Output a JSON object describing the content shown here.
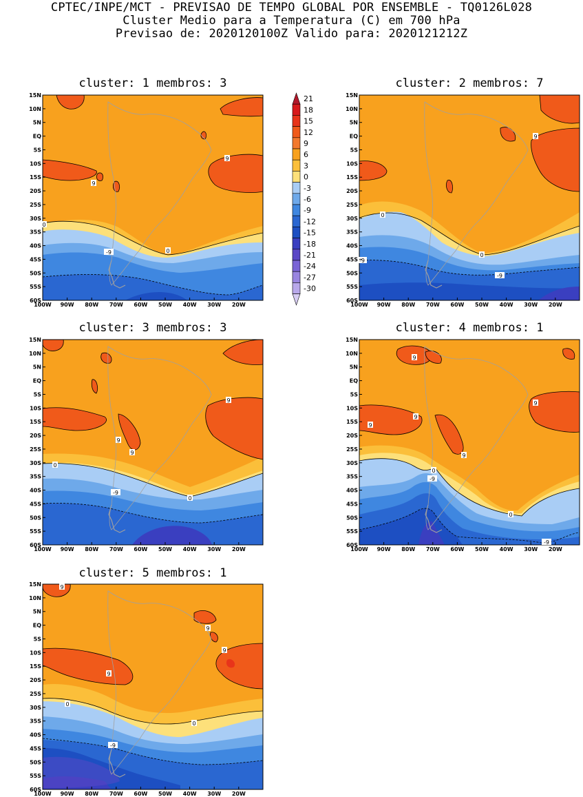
{
  "header": {
    "line1": "CPTEC/INPE/MCT - PREVISAO DE TEMPO GLOBAL POR ENSEMBLE - TQ0126L028",
    "line2": "Cluster Medio para a Temperatura (C) em 700 hPa",
    "line3": "Previsao de: 2020120100Z   Valido para: 2020121212Z"
  },
  "colorbar": {
    "levels": [
      "21",
      "18",
      "15",
      "12",
      "9",
      "6",
      "3",
      "0",
      "-3",
      "-6",
      "-9",
      "-12",
      "-15",
      "-18",
      "-21",
      "-24",
      "-27",
      "-30"
    ],
    "colors": [
      "#b2182b",
      "#d7191c",
      "#e8341a",
      "#f05a1a",
      "#f2792e",
      "#f8a11e",
      "#fbbf3a",
      "#fde07a",
      "#a9cdf5",
      "#6ea9ea",
      "#3f87e0",
      "#2a67d1",
      "#1d4fc2",
      "#3a3fc0",
      "#5b47c6",
      "#7a64d6",
      "#9985e0",
      "#b8a8ea",
      "#d6ccf2"
    ]
  },
  "axes": {
    "x_ticks": [
      "100W",
      "90W",
      "80W",
      "70W",
      "60W",
      "50W",
      "40W",
      "30W",
      "20W"
    ],
    "y_ticks": [
      "15N",
      "10N",
      "5N",
      "EQ",
      "5S",
      "10S",
      "15S",
      "20S",
      "25S",
      "30S",
      "35S",
      "40S",
      "45S",
      "50S",
      "55S",
      "60S"
    ]
  },
  "panels": [
    {
      "title": "cluster: 1   membros: 3",
      "labels": [
        "9",
        "9",
        "0",
        "0",
        "-9"
      ]
    },
    {
      "title": "cluster: 2   membros: 7",
      "labels": [
        "9",
        "0",
        "0",
        "-9",
        "-9"
      ]
    },
    {
      "title": "cluster: 3   membros: 3",
      "labels": [
        "9",
        "9",
        "9",
        "0",
        "0",
        "-9"
      ]
    },
    {
      "title": "cluster: 4   membros: 1",
      "labels": [
        "9",
        "9",
        "9",
        "9",
        "9",
        "0",
        "0",
        "-9",
        "-9"
      ]
    },
    {
      "title": "cluster: 5   membros: 1",
      "labels": [
        "9",
        "9",
        "9",
        "9",
        "0",
        "0",
        "-9"
      ]
    }
  ]
}
